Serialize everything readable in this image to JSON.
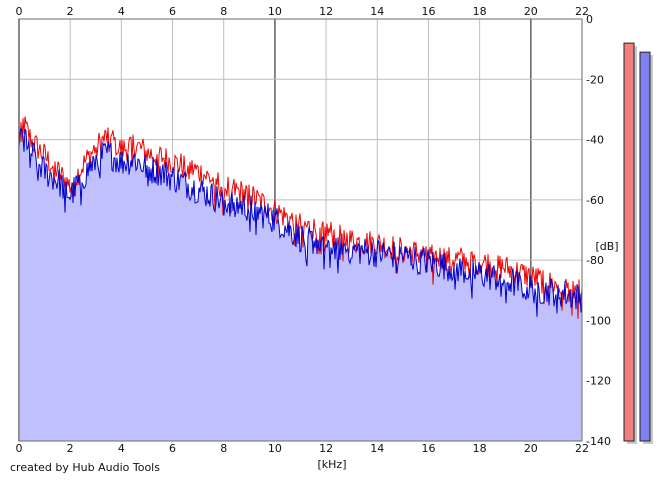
{
  "credit": "created by Hub Audio Tools",
  "x_unit": "[kHz]",
  "y_unit": "[dB]",
  "x_ticks": [
    0,
    2,
    4,
    6,
    8,
    10,
    12,
    14,
    16,
    18,
    20,
    22
  ],
  "y_ticks": [
    0,
    -20,
    -40,
    -60,
    -80,
    -100,
    -120,
    -140
  ],
  "colors": {
    "background": "#ffffff",
    "plot_bg": "#ffffff",
    "grid": "#bdbdbd",
    "axis_major": "#6a6a6a",
    "fill": "#c0c0ff",
    "left_channel": "#ee0000",
    "right_channel": "#0000cc",
    "meter_left": "#f08080",
    "meter_right": "#8080f0"
  },
  "chart_data": {
    "type": "area",
    "xlabel": "[kHz]",
    "ylabel": "[dB]",
    "xlim": [
      0,
      22
    ],
    "ylim": [
      -140,
      0
    ],
    "grid": true,
    "series": [
      {
        "channel": "left",
        "x": [
          0,
          0.1,
          0.5,
          1,
          1.5,
          2,
          2.5,
          3,
          3.5,
          4,
          4.5,
          5,
          5.5,
          6,
          7,
          8,
          9,
          10,
          11,
          12,
          13,
          14,
          15,
          16,
          17,
          18,
          19,
          20,
          21,
          22
        ],
        "y": [
          -42,
          -33,
          -40,
          -45,
          -50,
          -55,
          -48,
          -42,
          -38,
          -43,
          -41,
          -44,
          -45,
          -47,
          -50,
          -55,
          -58,
          -63,
          -68,
          -70,
          -73,
          -74,
          -76,
          -78,
          -79,
          -80,
          -82,
          -85,
          -88,
          -90
        ]
      },
      {
        "channel": "right",
        "x": [
          0,
          0.1,
          0.5,
          1,
          1.5,
          2,
          2.5,
          3,
          3.5,
          4,
          4.5,
          5,
          5.5,
          6,
          7,
          8,
          9,
          10,
          11,
          12,
          13,
          14,
          15,
          16,
          17,
          18,
          19,
          20,
          21,
          22
        ],
        "y": [
          -45,
          -35,
          -44,
          -50,
          -53,
          -58,
          -52,
          -46,
          -44,
          -47,
          -46,
          -49,
          -50,
          -52,
          -56,
          -60,
          -62,
          -66,
          -72,
          -74,
          -76,
          -77,
          -78,
          -80,
          -82,
          -84,
          -86,
          -89,
          -90,
          -92
        ]
      }
    ],
    "meters": {
      "left_db": -8,
      "right_db": -11
    }
  }
}
